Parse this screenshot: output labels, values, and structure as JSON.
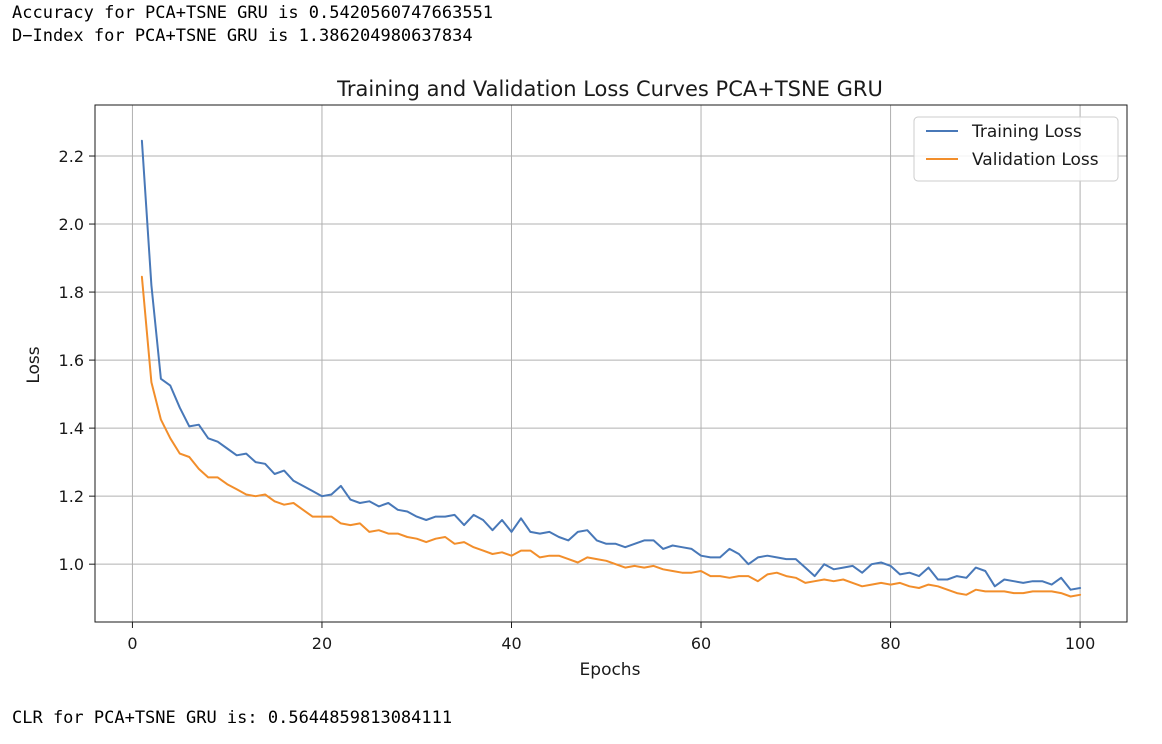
{
  "output": {
    "accuracy_line": "Accuracy for PCA+TSNE GRU is 0.5420560747663551",
    "dindex_line": "D−Index for PCA+TSNE GRU is 1.386204980637834",
    "clr_line": "CLR for PCA+TSNE GRU is: 0.5644859813084111"
  },
  "chart_data": {
    "type": "line",
    "title": "Training and Validation Loss Curves PCA+TSNE GRU",
    "xlabel": "Epochs",
    "ylabel": "Loss",
    "xlim": [
      -3.95,
      104.95
    ],
    "ylim": [
      0.83,
      2.35
    ],
    "xticks": [
      0,
      20,
      40,
      60,
      80,
      100
    ],
    "yticks": [
      1.0,
      1.2,
      1.4,
      1.6,
      1.8,
      2.0,
      2.2
    ],
    "grid": true,
    "legend_position": "top-right",
    "series": [
      {
        "name": "Training Loss",
        "color": "#4878b8",
        "x": [
          1,
          2,
          3,
          4,
          5,
          6,
          7,
          8,
          9,
          10,
          11,
          12,
          13,
          14,
          15,
          16,
          17,
          18,
          19,
          20,
          21,
          22,
          23,
          24,
          25,
          26,
          27,
          28,
          29,
          30,
          31,
          32,
          33,
          34,
          35,
          36,
          37,
          38,
          39,
          40,
          41,
          42,
          43,
          44,
          45,
          46,
          47,
          48,
          49,
          50,
          51,
          52,
          53,
          54,
          55,
          56,
          57,
          58,
          59,
          60,
          61,
          62,
          63,
          64,
          65,
          66,
          67,
          68,
          69,
          70,
          71,
          72,
          73,
          74,
          75,
          76,
          77,
          78,
          79,
          80,
          81,
          82,
          83,
          84,
          85,
          86,
          87,
          88,
          89,
          90,
          91,
          92,
          93,
          94,
          95,
          96,
          97,
          98,
          99,
          100
        ],
        "values": [
          2.245,
          1.82,
          1.545,
          1.525,
          1.46,
          1.405,
          1.41,
          1.37,
          1.36,
          1.34,
          1.32,
          1.325,
          1.3,
          1.295,
          1.265,
          1.275,
          1.245,
          1.23,
          1.215,
          1.2,
          1.205,
          1.23,
          1.19,
          1.18,
          1.185,
          1.17,
          1.18,
          1.16,
          1.155,
          1.14,
          1.13,
          1.14,
          1.14,
          1.145,
          1.115,
          1.145,
          1.13,
          1.1,
          1.13,
          1.095,
          1.135,
          1.095,
          1.09,
          1.095,
          1.08,
          1.07,
          1.095,
          1.1,
          1.07,
          1.06,
          1.06,
          1.05,
          1.06,
          1.07,
          1.07,
          1.045,
          1.055,
          1.05,
          1.045,
          1.025,
          1.02,
          1.02,
          1.045,
          1.03,
          1.0,
          1.02,
          1.025,
          1.02,
          1.015,
          1.015,
          0.99,
          0.965,
          1.0,
          0.985,
          0.99,
          0.995,
          0.975,
          1.0,
          1.005,
          0.995,
          0.97,
          0.975,
          0.965,
          0.99,
          0.955,
          0.955,
          0.965,
          0.96,
          0.99,
          0.98,
          0.935,
          0.955,
          0.95,
          0.945,
          0.95,
          0.95,
          0.94,
          0.96,
          0.925,
          0.93
        ]
      },
      {
        "name": "Validation Loss",
        "color": "#f28e2b",
        "x": [
          1,
          2,
          3,
          4,
          5,
          6,
          7,
          8,
          9,
          10,
          11,
          12,
          13,
          14,
          15,
          16,
          17,
          18,
          19,
          20,
          21,
          22,
          23,
          24,
          25,
          26,
          27,
          28,
          29,
          30,
          31,
          32,
          33,
          34,
          35,
          36,
          37,
          38,
          39,
          40,
          41,
          42,
          43,
          44,
          45,
          46,
          47,
          48,
          49,
          50,
          51,
          52,
          53,
          54,
          55,
          56,
          57,
          58,
          59,
          60,
          61,
          62,
          63,
          64,
          65,
          66,
          67,
          68,
          69,
          70,
          71,
          72,
          73,
          74,
          75,
          76,
          77,
          78,
          79,
          80,
          81,
          82,
          83,
          84,
          85,
          86,
          87,
          88,
          89,
          90,
          91,
          92,
          93,
          94,
          95,
          96,
          97,
          98,
          99,
          100
        ],
        "values": [
          1.845,
          1.535,
          1.425,
          1.37,
          1.325,
          1.315,
          1.28,
          1.255,
          1.255,
          1.235,
          1.22,
          1.205,
          1.2,
          1.205,
          1.185,
          1.175,
          1.18,
          1.16,
          1.14,
          1.14,
          1.14,
          1.12,
          1.115,
          1.12,
          1.095,
          1.1,
          1.09,
          1.09,
          1.08,
          1.075,
          1.065,
          1.075,
          1.08,
          1.06,
          1.065,
          1.05,
          1.04,
          1.03,
          1.035,
          1.025,
          1.04,
          1.04,
          1.02,
          1.025,
          1.025,
          1.015,
          1.005,
          1.02,
          1.015,
          1.01,
          1.0,
          0.99,
          0.995,
          0.99,
          0.995,
          0.985,
          0.98,
          0.975,
          0.975,
          0.98,
          0.965,
          0.965,
          0.96,
          0.965,
          0.965,
          0.95,
          0.97,
          0.975,
          0.965,
          0.96,
          0.945,
          0.95,
          0.955,
          0.95,
          0.955,
          0.945,
          0.935,
          0.94,
          0.945,
          0.94,
          0.945,
          0.935,
          0.93,
          0.94,
          0.935,
          0.925,
          0.915,
          0.91,
          0.925,
          0.92,
          0.92,
          0.92,
          0.915,
          0.915,
          0.92,
          0.92,
          0.92,
          0.915,
          0.905,
          0.91
        ]
      }
    ]
  }
}
